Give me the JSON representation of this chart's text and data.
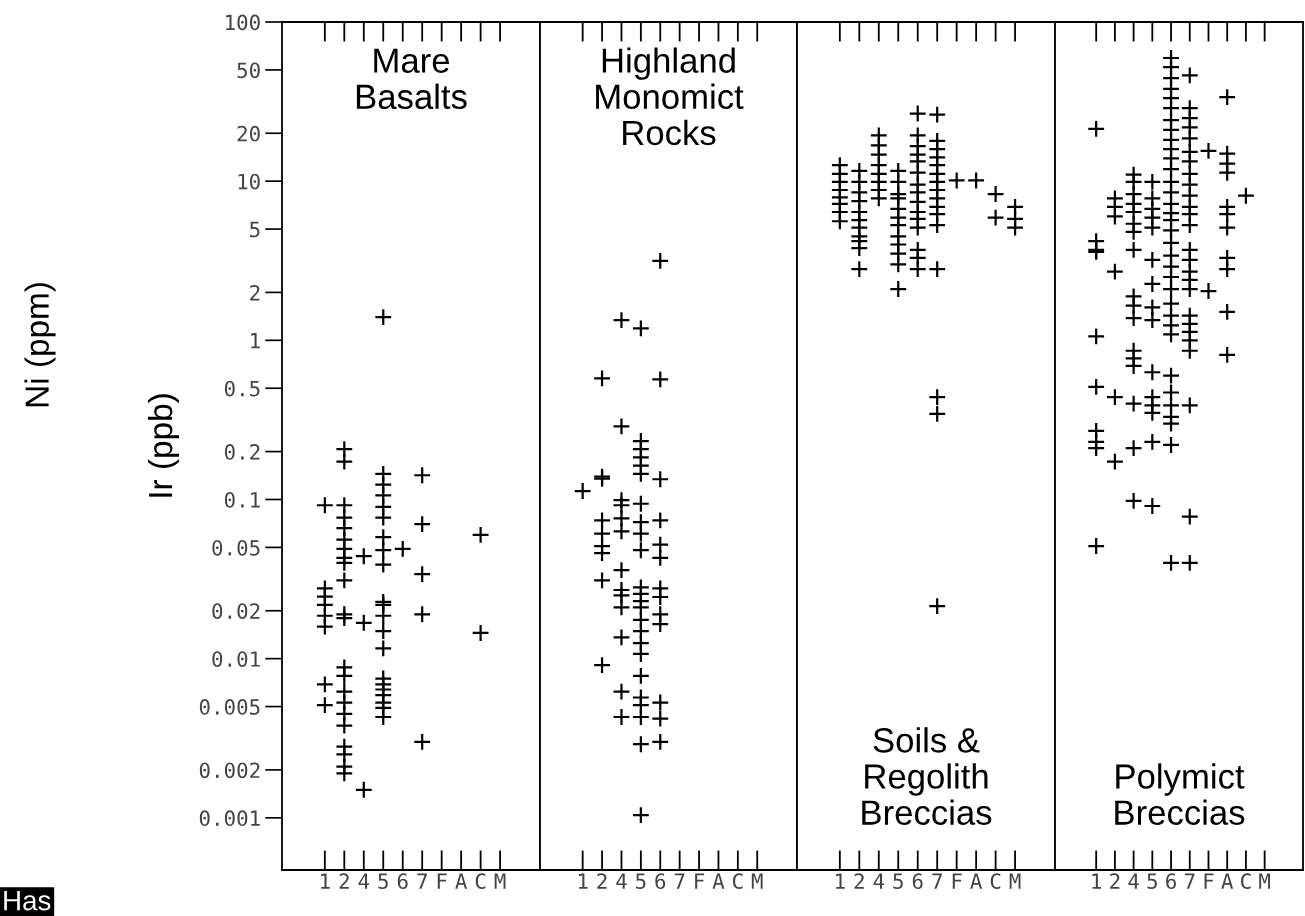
{
  "chart_data": [
    {
      "type": "scatter",
      "ylabel": "Ir (ppb)",
      "annotations": [
        "Mare Basalts",
        "Ni (ppm)",
        "Has"
      ],
      "categories": [
        "1",
        "2",
        "4",
        "5",
        "6",
        "7",
        "F",
        "A",
        "C",
        "M"
      ],
      "log": "y",
      "marker": "cross",
      "ylim": [
        0.00047,
        100
      ],
      "yticks": [
        0.001,
        0.002,
        0.005,
        0.01,
        0.02,
        0.05,
        0.1,
        0.2,
        0.5,
        1,
        2,
        5,
        10,
        20,
        50,
        100
      ],
      "series": [
        {
          "color": "#000000",
          "x": [
            "1",
            "1",
            "1",
            "1",
            "1",
            "1",
            "1",
            "1",
            "2",
            "2",
            "2",
            "2",
            "2",
            "2",
            "2",
            "2",
            "2",
            "2",
            "2",
            "2",
            "2",
            "2",
            "2",
            "2",
            "2",
            "2",
            "2",
            "2",
            "2",
            "2",
            "4",
            "4",
            "4",
            "5",
            "5",
            "5",
            "5",
            "5",
            "5",
            "5",
            "5",
            "5",
            "5",
            "5",
            "5",
            "5",
            "5",
            "5",
            "5",
            "5",
            "5",
            "5",
            "5",
            "5",
            "6",
            "7",
            "7",
            "7",
            "7",
            "7",
            "C",
            "C"
          ],
          "values": [
            0.092,
            0.0276,
            0.0245,
            0.0218,
            0.0186,
            0.0159,
            0.0069,
            0.0051,
            0.207,
            0.173,
            0.092,
            0.077,
            0.066,
            0.056,
            0.049,
            0.043,
            0.04,
            0.031,
            0.019,
            0.018,
            0.0088,
            0.0078,
            0.0062,
            0.0053,
            0.0045,
            0.0038,
            0.0028,
            0.0025,
            0.0021,
            0.0019,
            0.044,
            0.0168,
            0.0015,
            1.4,
            0.145,
            0.124,
            0.106,
            0.09,
            0.077,
            0.058,
            0.048,
            0.039,
            0.0227,
            0.0218,
            0.0186,
            0.0149,
            0.0116,
            0.0075,
            0.0069,
            0.0064,
            0.0059,
            0.0053,
            0.0043,
            0.0049,
            0.049,
            0.142,
            0.07,
            0.034,
            0.019,
            0.003,
            0.06,
            0.0145
          ]
        }
      ]
    },
    {
      "type": "scatter",
      "annotations": [
        "Highland Monomict Rocks"
      ],
      "categories": [
        "1",
        "2",
        "4",
        "5",
        "6",
        "7",
        "F",
        "A",
        "C",
        "M"
      ],
      "log": "y",
      "marker": "cross",
      "ylim": [
        0.00047,
        100
      ],
      "tick_labels": "x",
      "series": [
        {
          "color": "#000000",
          "x": [
            "1",
            "2",
            "2",
            "2",
            "2",
            "2",
            "2",
            "2",
            "2",
            "2",
            "4",
            "4",
            "4",
            "4",
            "4",
            "4",
            "4",
            "4",
            "4",
            "4",
            "4",
            "4",
            "4",
            "5",
            "5",
            "5",
            "5",
            "5",
            "5",
            "5",
            "5",
            "5",
            "5",
            "5",
            "5",
            "5",
            "5",
            "5",
            "5",
            "5",
            "5",
            "5",
            "5",
            "5",
            "5",
            "5",
            "5",
            "6",
            "6",
            "6",
            "6",
            "6",
            "6",
            "6",
            "6",
            "6",
            "6",
            "6",
            "6",
            "6"
          ],
          "values": [
            0.113,
            0.577,
            0.139,
            0.135,
            0.074,
            0.061,
            0.051,
            0.046,
            0.031,
            0.0091,
            1.34,
            0.288,
            0.099,
            0.092,
            0.076,
            0.063,
            0.036,
            0.027,
            0.025,
            0.021,
            0.0136,
            0.0062,
            0.0043,
            1.19,
            0.233,
            0.207,
            0.184,
            0.163,
            0.145,
            0.094,
            0.072,
            0.061,
            0.048,
            0.028,
            0.0255,
            0.023,
            0.021,
            0.0175,
            0.0149,
            0.0125,
            0.0107,
            0.0078,
            0.0057,
            0.0051,
            0.0043,
            0.0029,
            0.00104,
            3.16,
            0.568,
            0.134,
            0.074,
            0.052,
            0.043,
            0.0276,
            0.0244,
            0.019,
            0.0165,
            0.0053,
            0.0042,
            0.003
          ]
        }
      ]
    },
    {
      "type": "scatter",
      "annotations": [
        "Soils & Regolith Breccias"
      ],
      "categories": [
        "1",
        "2",
        "4",
        "5",
        "6",
        "7",
        "F",
        "A",
        "C",
        "M"
      ],
      "log": "y",
      "marker": "cross",
      "ylim": [
        0.00047,
        100
      ],
      "tick_labels": "x",
      "series": [
        {
          "color": "#000000",
          "x": [
            "1",
            "1",
            "1",
            "1",
            "1",
            "1",
            "1",
            "1",
            "2",
            "2",
            "2",
            "2",
            "2",
            "2",
            "2",
            "2",
            "2",
            "2",
            "2",
            "4",
            "4",
            "4",
            "4",
            "4",
            "4",
            "4",
            "4",
            "5",
            "5",
            "5",
            "5",
            "5",
            "5",
            "5",
            "5",
            "5",
            "5",
            "5",
            "5",
            "6",
            "6",
            "6",
            "6",
            "6",
            "6",
            "6",
            "6",
            "6",
            "6",
            "6",
            "6",
            "6",
            "6",
            "6",
            "7",
            "7",
            "7",
            "7",
            "7",
            "7",
            "7",
            "7",
            "7",
            "7",
            "7",
            "7",
            "7",
            "7",
            "7",
            "7",
            "F",
            "A",
            "C",
            "C",
            "M",
            "M",
            "M"
          ],
          "values": [
            12.6,
            11.1,
            9.9,
            8.8,
            7.9,
            7.2,
            6.4,
            5.6,
            11.6,
            9.9,
            8.5,
            7.5,
            6.4,
            5.7,
            5.1,
            4.5,
            4.2,
            3.8,
            2.8,
            19.4,
            16.8,
            14.7,
            12.6,
            11.1,
            9.9,
            8.8,
            7.8,
            11.6,
            9.9,
            8.3,
            7.8,
            6.7,
            5.9,
            5.3,
            4.5,
            4.0,
            3.5,
            3.0,
            2.1,
            26.6,
            19.4,
            16.6,
            14.7,
            13.3,
            11.3,
            9.5,
            8.5,
            7.4,
            6.4,
            5.8,
            5.1,
            3.7,
            3.3,
            2.8,
            26.2,
            17.9,
            15.9,
            14.1,
            12.6,
            11.1,
            9.9,
            8.8,
            7.8,
            6.9,
            6.2,
            5.3,
            2.8,
            0.44,
            0.345,
            0.0214,
            10.1,
            10.1,
            8.3,
            5.9,
            6.9,
            5.8,
            5.1
          ]
        }
      ]
    },
    {
      "type": "scatter",
      "annotations": [
        "Polymict Breccias"
      ],
      "categories": [
        "1",
        "2",
        "4",
        "5",
        "6",
        "7",
        "F",
        "A",
        "C",
        "M"
      ],
      "log": "y",
      "marker": "cross",
      "ylim": [
        0.00047,
        100
      ],
      "tick_labels": "x",
      "series": [
        {
          "color": "#000000",
          "x": [
            "1",
            "1",
            "1",
            "1",
            "1",
            "1",
            "1",
            "1",
            "1",
            "1",
            "2",
            "2",
            "2",
            "2",
            "2",
            "2",
            "4",
            "4",
            "4",
            "4",
            "4",
            "4",
            "4",
            "4",
            "4",
            "4",
            "4",
            "4",
            "4",
            "4",
            "4",
            "4",
            "4",
            "5",
            "5",
            "5",
            "5",
            "5",
            "5",
            "5",
            "5",
            "5",
            "5",
            "5",
            "5",
            "5",
            "5",
            "5",
            "6",
            "6",
            "6",
            "6",
            "6",
            "6",
            "6",
            "6",
            "6",
            "6",
            "6",
            "6",
            "6",
            "6",
            "6",
            "6",
            "6",
            "6",
            "6",
            "6",
            "6",
            "6",
            "6",
            "6",
            "6",
            "6",
            "6",
            "6",
            "6",
            "6",
            "6",
            "6",
            "6",
            "6",
            "7",
            "7",
            "7",
            "7",
            "7",
            "7",
            "7",
            "7",
            "7",
            "7",
            "7",
            "7",
            "7",
            "7",
            "7",
            "7",
            "7",
            "7",
            "7",
            "7",
            "7",
            "7",
            "7",
            "7",
            "7",
            "7",
            "F",
            "F",
            "A",
            "A",
            "A",
            "A",
            "A",
            "A",
            "A",
            "A",
            "A",
            "A",
            "A",
            "C"
          ],
          "values": [
            21.3,
            4.2,
            3.7,
            3.6,
            1.06,
            0.51,
            0.27,
            0.23,
            0.21,
            0.051,
            7.8,
            6.9,
            6.0,
            2.7,
            0.44,
            0.173,
            11.0,
            9.9,
            8.3,
            7.2,
            6.4,
            5.4,
            4.8,
            3.7,
            1.89,
            1.65,
            1.38,
            0.86,
            0.77,
            0.69,
            0.4,
            0.21,
            0.098,
            9.9,
            7.8,
            6.7,
            5.9,
            5.1,
            3.2,
            2.26,
            1.61,
            1.34,
            0.63,
            0.44,
            0.39,
            0.35,
            0.23,
            0.091,
            59.4,
            52,
            44.4,
            38,
            33.2,
            28.8,
            24.2,
            21.0,
            18.2,
            15.9,
            13.9,
            11.9,
            9.9,
            8.5,
            7.2,
            6.3,
            5.7,
            4.9,
            4.1,
            3.4,
            2.9,
            2.5,
            2.1,
            1.7,
            1.43,
            1.24,
            1.09,
            0.6,
            0.47,
            0.39,
            0.33,
            0.3,
            0.22,
            0.04,
            46.2,
            28.8,
            24.9,
            21.8,
            18.6,
            15.3,
            13.3,
            11.1,
            9.5,
            8.1,
            6.9,
            6.2,
            5.3,
            3.7,
            3.2,
            2.7,
            2.4,
            2.1,
            1.43,
            1.27,
            1.13,
            1.0,
            0.86,
            0.39,
            0.078,
            0.04,
            15.5,
            2.04,
            33.7,
            14.9,
            12.9,
            11.3,
            6.9,
            6.2,
            5.1,
            3.3,
            2.8,
            1.51,
            0.81,
            8.1
          ]
        }
      ]
    }
  ]
}
